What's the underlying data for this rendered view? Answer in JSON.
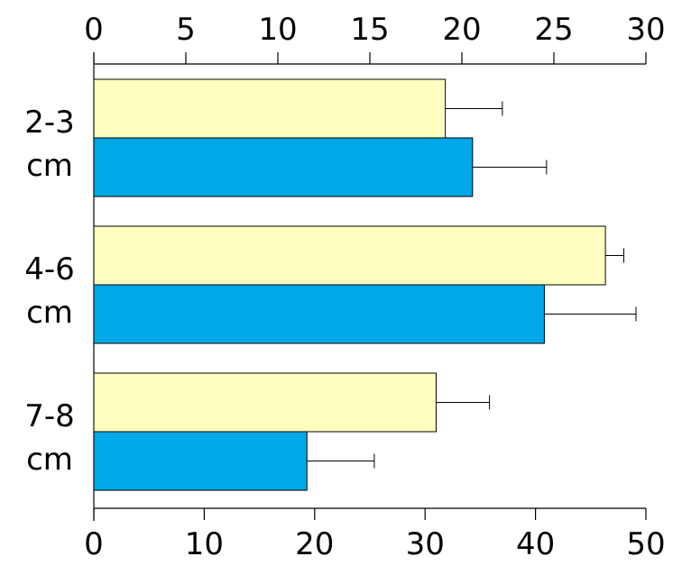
{
  "chart_data": {
    "type": "bar",
    "orientation": "horizontal",
    "categories": [
      {
        "line1": "2-3",
        "line2": "cm"
      },
      {
        "line1": "4-6",
        "line2": "cm"
      },
      {
        "line1": "7-8",
        "line2": "cm"
      }
    ],
    "top_axis": {
      "position": "top",
      "ticks": [
        "0",
        "5",
        "10",
        "15",
        "20",
        "25",
        "30"
      ],
      "range": [
        0,
        30
      ]
    },
    "bottom_axis": {
      "position": "bottom",
      "ticks": [
        "0",
        "10",
        "20",
        "30",
        "40",
        "50"
      ],
      "range": [
        0,
        50
      ]
    },
    "series": [
      {
        "color": "#FFFFC0",
        "axis": "top",
        "values": [
          19.1,
          27.8,
          18.6
        ],
        "errors": [
          3.1,
          1.0,
          2.9
        ]
      },
      {
        "color": "#00A8E8",
        "axis": "bottom",
        "values": [
          34.3,
          40.8,
          19.3
        ],
        "errors": [
          6.7,
          8.3,
          6.1
        ]
      }
    ],
    "grid": false,
    "legend": "none"
  }
}
